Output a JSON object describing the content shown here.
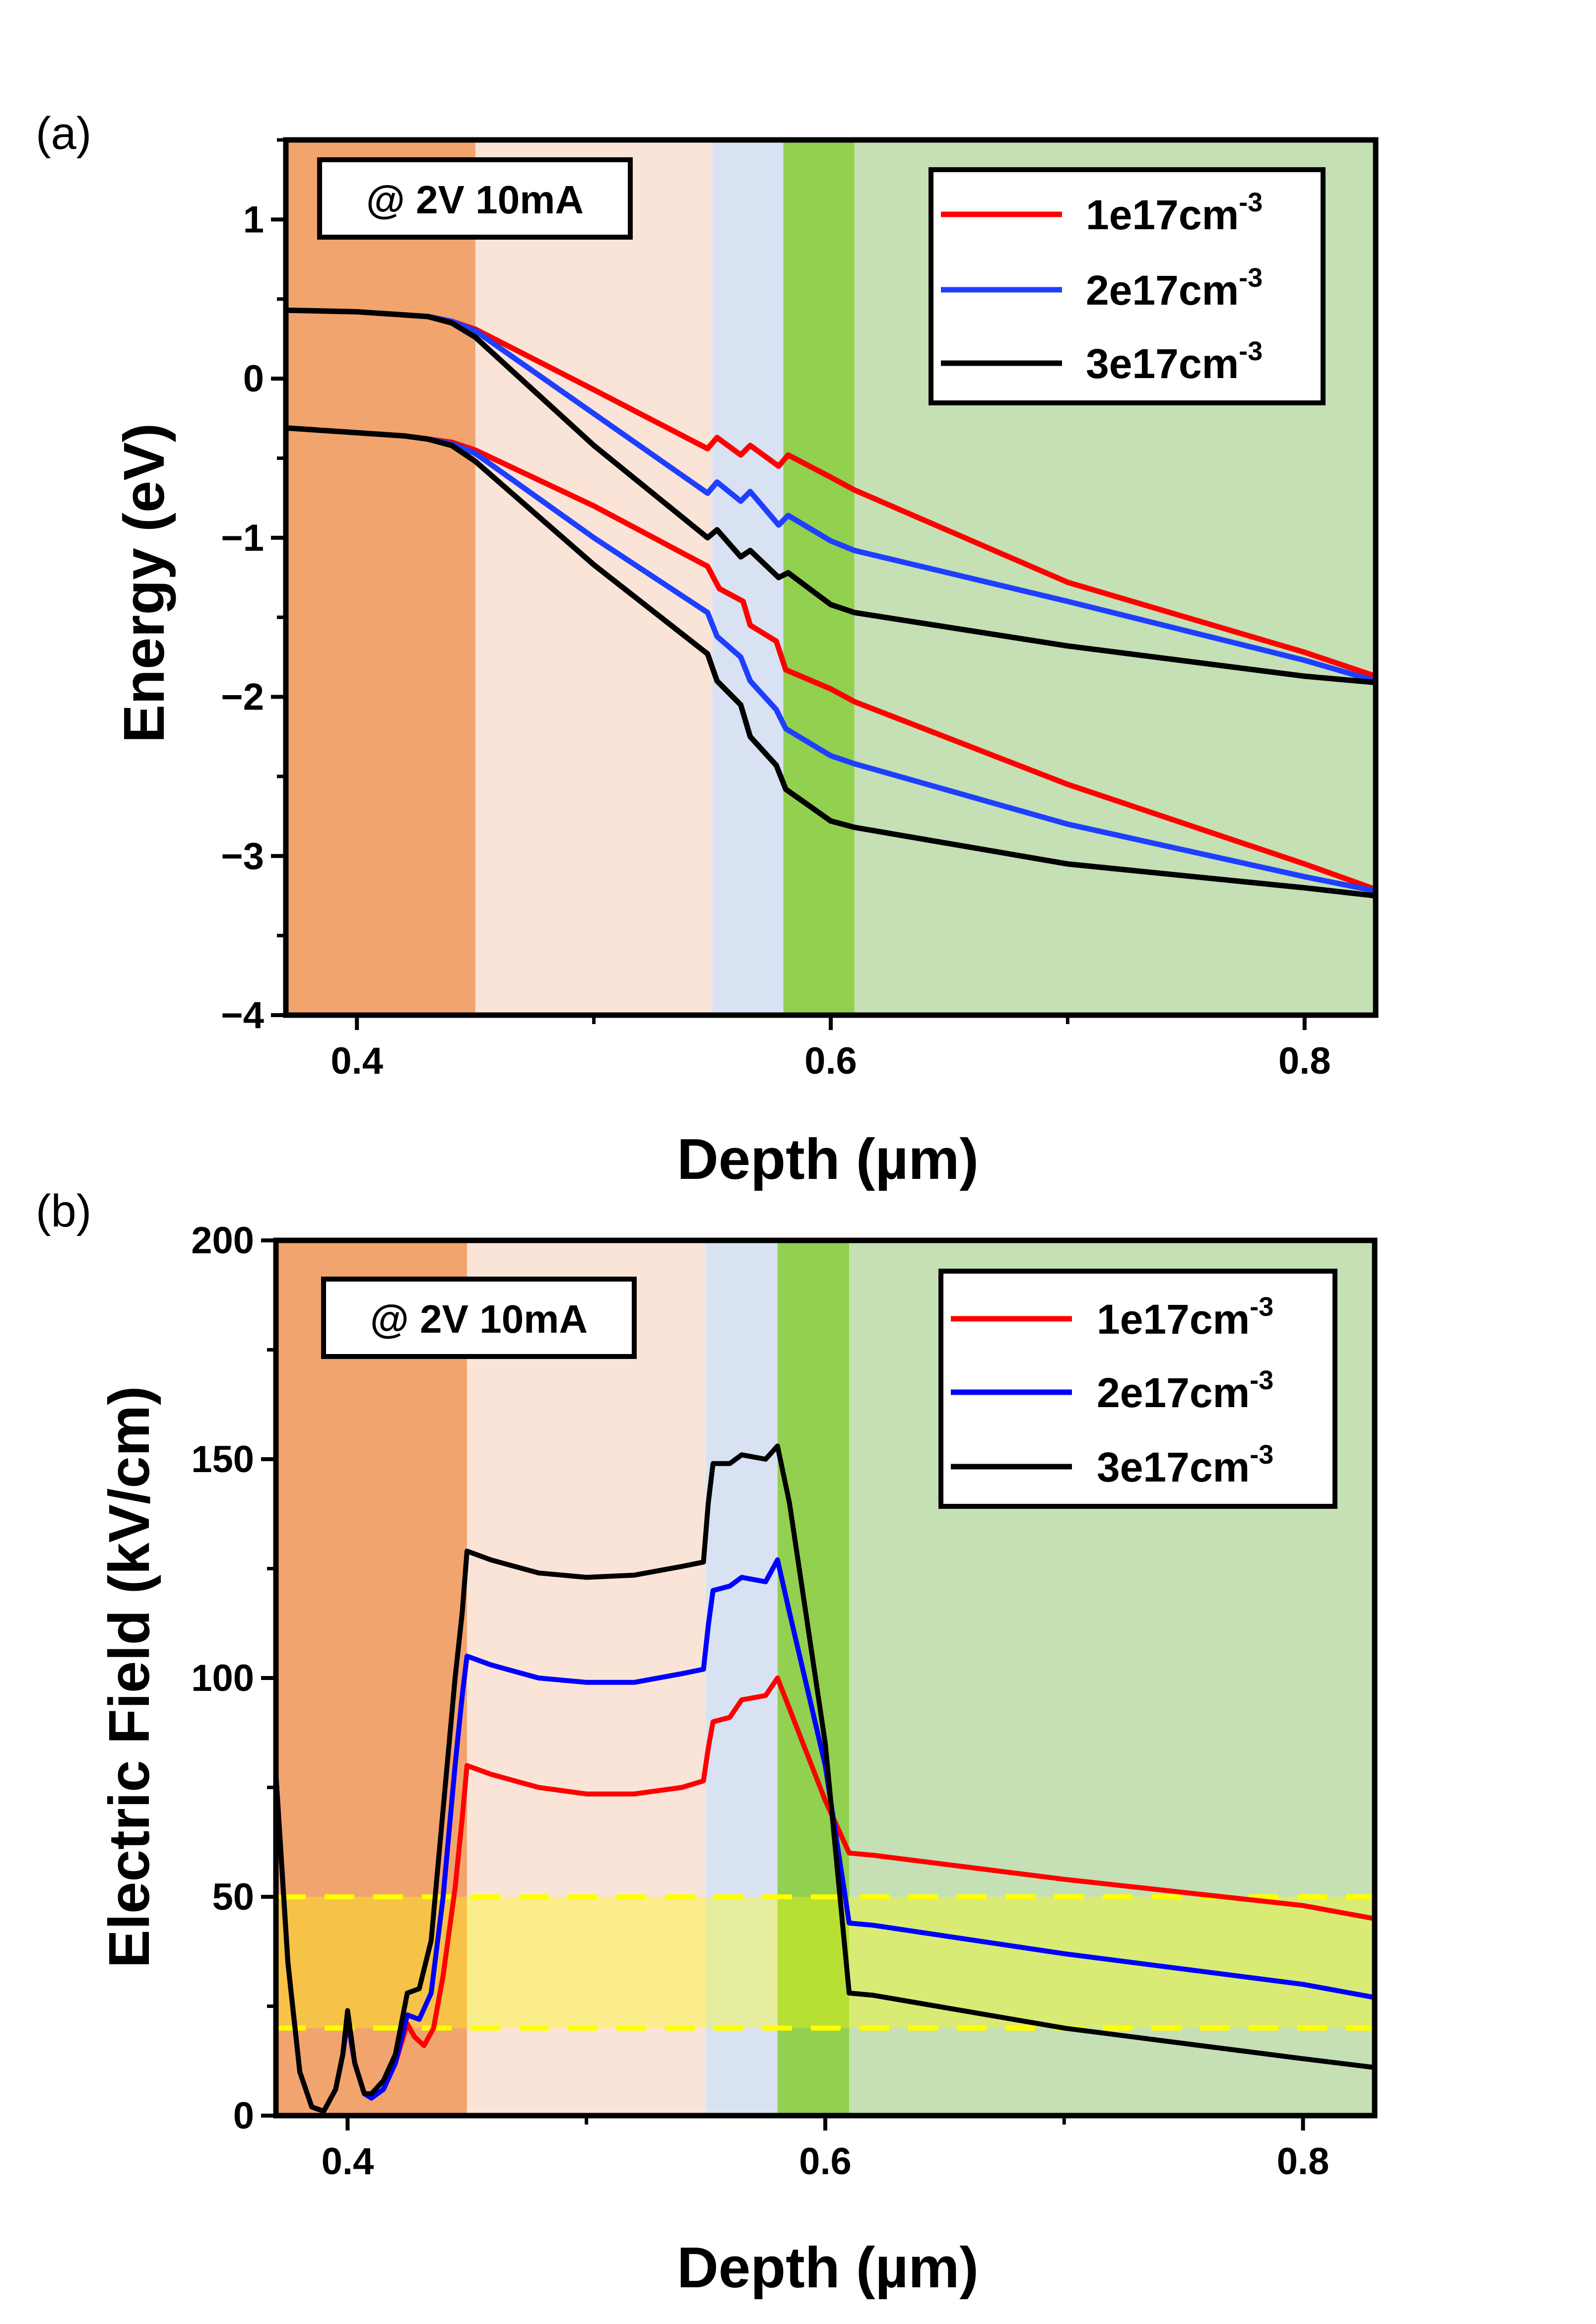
{
  "chart_data": [
    {
      "type": "line",
      "panel_label": "(a)",
      "annotation": "@ 2V 10mA",
      "xlabel": "Depth (µm)",
      "ylabel": "Energy (eV)",
      "xlim": [
        0.37,
        0.83
      ],
      "ylim": [
        -4,
        1.5
      ],
      "x_ticks": [
        "0.4",
        "0.6",
        "0.8"
      ],
      "x_tick_values": [
        0.4,
        0.6,
        0.8
      ],
      "y_ticks": [
        "1",
        "0",
        "−1",
        "−2",
        "−3",
        "−4"
      ],
      "y_tick_values": [
        1,
        0,
        -1,
        -2,
        -3,
        -4
      ],
      "regions": [
        {
          "x0": 0.37,
          "x1": 0.45,
          "color": "#f2a46f"
        },
        {
          "x0": 0.45,
          "x1": 0.55,
          "color": "#fae4d8"
        },
        {
          "x0": 0.55,
          "x1": 0.58,
          "color": "#d9e2f3"
        },
        {
          "x0": 0.58,
          "x1": 0.61,
          "color": "#92d050"
        },
        {
          "x0": 0.61,
          "x1": 0.83,
          "color": "#c5e0b4"
        }
      ],
      "legend": {
        "position": "top-right",
        "entries": [
          {
            "base": "1e17cm",
            "sup": "-3",
            "color": "#ff0000"
          },
          {
            "base": "2e17cm",
            "sup": "-3",
            "color": "#1f3fff"
          },
          {
            "base": "3e17cm",
            "sup": "-3",
            "color": "#000000"
          }
        ]
      },
      "series": [
        {
          "name": "1e17cm-3 conduction band",
          "color": "#ff0000",
          "points": [
            [
              0.43,
              0.39
            ],
            [
              0.44,
              0.36
            ],
            [
              0.45,
              0.31
            ],
            [
              0.5,
              -0.07
            ],
            [
              0.548,
              -0.44
            ],
            [
              0.552,
              -0.37
            ],
            [
              0.562,
              -0.48
            ],
            [
              0.566,
              -0.42
            ],
            [
              0.578,
              -0.55
            ],
            [
              0.582,
              -0.48
            ],
            [
              0.6,
              -0.62
            ],
            [
              0.61,
              -0.7
            ],
            [
              0.7,
              -1.28
            ],
            [
              0.8,
              -1.72
            ],
            [
              0.83,
              -1.87
            ]
          ]
        },
        {
          "name": "1e17cm-3 valence band",
          "color": "#ff0000",
          "points": [
            [
              0.43,
              -0.38
            ],
            [
              0.44,
              -0.4
            ],
            [
              0.45,
              -0.45
            ],
            [
              0.5,
              -0.8
            ],
            [
              0.548,
              -1.18
            ],
            [
              0.553,
              -1.32
            ],
            [
              0.563,
              -1.4
            ],
            [
              0.566,
              -1.55
            ],
            [
              0.577,
              -1.65
            ],
            [
              0.581,
              -1.83
            ],
            [
              0.6,
              -1.95
            ],
            [
              0.61,
              -2.03
            ],
            [
              0.7,
              -2.55
            ],
            [
              0.8,
              -3.05
            ],
            [
              0.83,
              -3.21
            ]
          ]
        },
        {
          "name": "2e17cm-3 conduction band",
          "color": "#1f3fff",
          "points": [
            [
              0.43,
              0.39
            ],
            [
              0.44,
              0.36
            ],
            [
              0.45,
              0.3
            ],
            [
              0.5,
              -0.22
            ],
            [
              0.548,
              -0.72
            ],
            [
              0.552,
              -0.65
            ],
            [
              0.562,
              -0.77
            ],
            [
              0.566,
              -0.71
            ],
            [
              0.578,
              -0.92
            ],
            [
              0.582,
              -0.86
            ],
            [
              0.6,
              -1.02
            ],
            [
              0.61,
              -1.08
            ],
            [
              0.7,
              -1.4
            ],
            [
              0.8,
              -1.77
            ],
            [
              0.83,
              -1.9
            ]
          ]
        },
        {
          "name": "2e17cm-3 valence band",
          "color": "#1f3fff",
          "points": [
            [
              0.43,
              -0.38
            ],
            [
              0.44,
              -0.41
            ],
            [
              0.45,
              -0.47
            ],
            [
              0.5,
              -1.0
            ],
            [
              0.548,
              -1.47
            ],
            [
              0.552,
              -1.62
            ],
            [
              0.562,
              -1.75
            ],
            [
              0.566,
              -1.9
            ],
            [
              0.577,
              -2.08
            ],
            [
              0.581,
              -2.2
            ],
            [
              0.6,
              -2.37
            ],
            [
              0.61,
              -2.42
            ],
            [
              0.7,
              -2.8
            ],
            [
              0.8,
              -3.13
            ],
            [
              0.83,
              -3.22
            ]
          ]
        },
        {
          "name": "3e17cm-3 conduction band",
          "color": "#000000",
          "points": [
            [
              0.37,
              0.43
            ],
            [
              0.4,
              0.42
            ],
            [
              0.42,
              0.4
            ],
            [
              0.43,
              0.39
            ],
            [
              0.44,
              0.35
            ],
            [
              0.45,
              0.26
            ],
            [
              0.5,
              -0.42
            ],
            [
              0.548,
              -1.0
            ],
            [
              0.552,
              -0.95
            ],
            [
              0.562,
              -1.12
            ],
            [
              0.566,
              -1.08
            ],
            [
              0.578,
              -1.25
            ],
            [
              0.582,
              -1.22
            ],
            [
              0.6,
              -1.42
            ],
            [
              0.61,
              -1.47
            ],
            [
              0.7,
              -1.68
            ],
            [
              0.8,
              -1.87
            ],
            [
              0.83,
              -1.91
            ]
          ]
        },
        {
          "name": "3e17cm-3 valence band",
          "color": "#000000",
          "points": [
            [
              0.37,
              -0.31
            ],
            [
              0.4,
              -0.34
            ],
            [
              0.42,
              -0.36
            ],
            [
              0.43,
              -0.38
            ],
            [
              0.44,
              -0.42
            ],
            [
              0.45,
              -0.52
            ],
            [
              0.5,
              -1.17
            ],
            [
              0.548,
              -1.73
            ],
            [
              0.552,
              -1.9
            ],
            [
              0.562,
              -2.05
            ],
            [
              0.566,
              -2.25
            ],
            [
              0.577,
              -2.43
            ],
            [
              0.581,
              -2.58
            ],
            [
              0.6,
              -2.78
            ],
            [
              0.61,
              -2.82
            ],
            [
              0.7,
              -3.05
            ],
            [
              0.8,
              -3.2
            ],
            [
              0.83,
              -3.25
            ]
          ]
        }
      ]
    },
    {
      "type": "line",
      "panel_label": "(b)",
      "annotation": "@ 2V 10mA",
      "xlabel": "Depth (µm)",
      "ylabel": "Electric Field (kV/cm)",
      "xlim": [
        0.37,
        0.83
      ],
      "ylim": [
        0,
        200
      ],
      "x_ticks": [
        "0.4",
        "0.6",
        "0.8"
      ],
      "x_tick_values": [
        0.4,
        0.6,
        0.8
      ],
      "y_ticks": [
        "200",
        "150",
        "100",
        "50",
        "0"
      ],
      "y_tick_values": [
        200,
        150,
        100,
        50,
        0
      ],
      "regions": [
        {
          "x0": 0.37,
          "x1": 0.45,
          "color": "#f2a46f"
        },
        {
          "x0": 0.45,
          "x1": 0.55,
          "color": "#fae4d8"
        },
        {
          "x0": 0.55,
          "x1": 0.58,
          "color": "#d9e2f3"
        },
        {
          "x0": 0.58,
          "x1": 0.61,
          "color": "#92d050"
        },
        {
          "x0": 0.61,
          "x1": 0.83,
          "color": "#c5e0b4"
        }
      ],
      "highlight_band": {
        "y0": 20,
        "y1": 50,
        "color": "#ffff00"
      },
      "legend": {
        "position": "top-right",
        "entries": [
          {
            "base": "1e17cm",
            "sup": "-3",
            "color": "#ff0000"
          },
          {
            "base": "2e17cm",
            "sup": "-3",
            "color": "#0000ff"
          },
          {
            "base": "3e17cm",
            "sup": "-3",
            "color": "#000000"
          }
        ]
      },
      "series": [
        {
          "name": "1e17cm-3",
          "color": "#ff0000",
          "points": [
            [
              0.37,
              78
            ],
            [
              0.375,
              35
            ],
            [
              0.38,
              10
            ],
            [
              0.385,
              2
            ],
            [
              0.39,
              1
            ],
            [
              0.395,
              6
            ],
            [
              0.398,
              14
            ],
            [
              0.4,
              22
            ],
            [
              0.403,
              12
            ],
            [
              0.407,
              5
            ],
            [
              0.41,
              4
            ],
            [
              0.415,
              6
            ],
            [
              0.42,
              12
            ],
            [
              0.425,
              21
            ],
            [
              0.428,
              18
            ],
            [
              0.432,
              16
            ],
            [
              0.436,
              20
            ],
            [
              0.44,
              32
            ],
            [
              0.445,
              52
            ],
            [
              0.448,
              68
            ],
            [
              0.45,
              80
            ],
            [
              0.46,
              78
            ],
            [
              0.48,
              75
            ],
            [
              0.5,
              73.5
            ],
            [
              0.52,
              73.5
            ],
            [
              0.54,
              75
            ],
            [
              0.549,
              76.5
            ],
            [
              0.551,
              84
            ],
            [
              0.553,
              90
            ],
            [
              0.56,
              91
            ],
            [
              0.565,
              95
            ],
            [
              0.575,
              96
            ],
            [
              0.58,
              100
            ],
            [
              0.585,
              93
            ],
            [
              0.6,
              72
            ],
            [
              0.61,
              60
            ],
            [
              0.62,
              59.5
            ],
            [
              0.7,
              54
            ],
            [
              0.8,
              48
            ],
            [
              0.83,
              45
            ]
          ]
        },
        {
          "name": "2e17cm-3",
          "color": "#0000ff",
          "points": [
            [
              0.37,
              78
            ],
            [
              0.375,
              35
            ],
            [
              0.38,
              10
            ],
            [
              0.385,
              2
            ],
            [
              0.39,
              1
            ],
            [
              0.395,
              6
            ],
            [
              0.398,
              14
            ],
            [
              0.4,
              22
            ],
            [
              0.403,
              12
            ],
            [
              0.407,
              5
            ],
            [
              0.41,
              4
            ],
            [
              0.415,
              6
            ],
            [
              0.42,
              12
            ],
            [
              0.425,
              23
            ],
            [
              0.43,
              22
            ],
            [
              0.435,
              28
            ],
            [
              0.44,
              50
            ],
            [
              0.445,
              80
            ],
            [
              0.448,
              96
            ],
            [
              0.45,
              105
            ],
            [
              0.46,
              103
            ],
            [
              0.48,
              100
            ],
            [
              0.5,
              99
            ],
            [
              0.52,
              99
            ],
            [
              0.54,
              101
            ],
            [
              0.549,
              102
            ],
            [
              0.551,
              112
            ],
            [
              0.553,
              120
            ],
            [
              0.56,
              121
            ],
            [
              0.565,
              123
            ],
            [
              0.575,
              122
            ],
            [
              0.58,
              127
            ],
            [
              0.585,
              115
            ],
            [
              0.6,
              80
            ],
            [
              0.61,
              44
            ],
            [
              0.62,
              43.5
            ],
            [
              0.7,
              37
            ],
            [
              0.8,
              30
            ],
            [
              0.83,
              27
            ]
          ]
        },
        {
          "name": "3e17cm-3",
          "color": "#000000",
          "points": [
            [
              0.37,
              78
            ],
            [
              0.375,
              35
            ],
            [
              0.38,
              10
            ],
            [
              0.385,
              2
            ],
            [
              0.39,
              1
            ],
            [
              0.395,
              6
            ],
            [
              0.398,
              14
            ],
            [
              0.4,
              24
            ],
            [
              0.403,
              12
            ],
            [
              0.407,
              5
            ],
            [
              0.41,
              5
            ],
            [
              0.415,
              8
            ],
            [
              0.42,
              14
            ],
            [
              0.425,
              28
            ],
            [
              0.43,
              29
            ],
            [
              0.435,
              40
            ],
            [
              0.44,
              70
            ],
            [
              0.445,
              100
            ],
            [
              0.448,
              115
            ],
            [
              0.45,
              129
            ],
            [
              0.46,
              127
            ],
            [
              0.48,
              124
            ],
            [
              0.5,
              123
            ],
            [
              0.52,
              123.5
            ],
            [
              0.54,
              125.5
            ],
            [
              0.549,
              126.5
            ],
            [
              0.551,
              140
            ],
            [
              0.553,
              149
            ],
            [
              0.56,
              149
            ],
            [
              0.565,
              151
            ],
            [
              0.575,
              150
            ],
            [
              0.58,
              153
            ],
            [
              0.585,
              140
            ],
            [
              0.6,
              85
            ],
            [
              0.61,
              28
            ],
            [
              0.62,
              27.5
            ],
            [
              0.7,
              20
            ],
            [
              0.8,
              13
            ],
            [
              0.83,
              11
            ]
          ]
        }
      ]
    }
  ]
}
